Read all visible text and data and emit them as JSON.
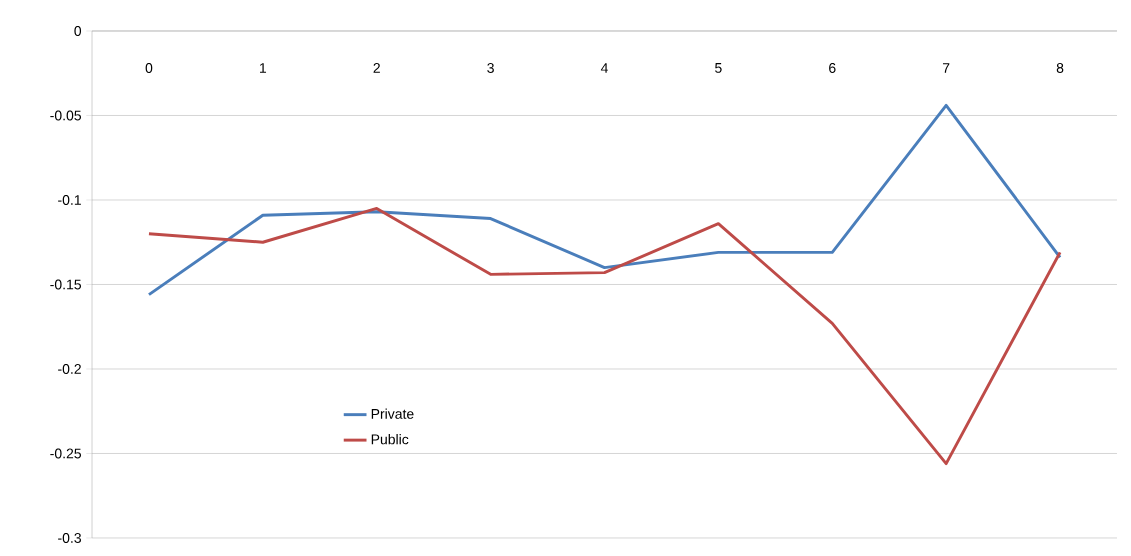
{
  "chart_data": {
    "type": "line",
    "categories": [
      "0",
      "1",
      "2",
      "3",
      "4",
      "5",
      "6",
      "7",
      "8"
    ],
    "series": [
      {
        "name": "Private",
        "color": "#4a7ebb",
        "values": [
          -0.156,
          -0.109,
          -0.107,
          -0.111,
          -0.14,
          -0.131,
          -0.131,
          -0.044,
          -0.134
        ]
      },
      {
        "name": "Public",
        "color": "#be4b48",
        "values": [
          -0.12,
          -0.125,
          -0.105,
          -0.144,
          -0.143,
          -0.114,
          -0.173,
          -0.256,
          -0.131
        ]
      }
    ],
    "ylim": [
      -0.3,
      0
    ],
    "yticks": [
      0,
      -0.05,
      -0.1,
      -0.15,
      -0.2,
      -0.25,
      -0.3
    ],
    "grid": "y",
    "legend": "bottom left",
    "marker": "none",
    "line_style": "solid"
  }
}
